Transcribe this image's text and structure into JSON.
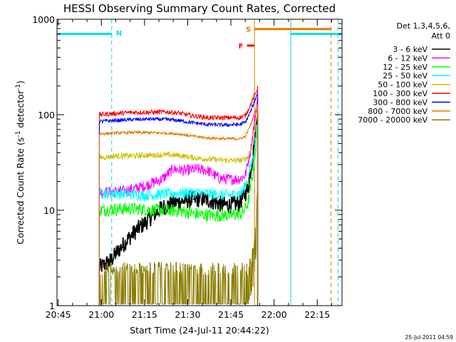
{
  "chart_data": {
    "type": "line",
    "title": "HESSI Observing Summary Count Rates, Corrected",
    "xlabel": "Start Time (24-Jul-11 20:44:22)",
    "ylabel_main": "Corrected Count Rate (s",
    "ylabel_mid": " detector",
    "ylabel_end": ")",
    "ylabel_sup": "-1",
    "yscale": "log",
    "ylim": [
      1,
      1000
    ],
    "yticks": [
      {
        "value": 1,
        "label": "1"
      },
      {
        "value": 10,
        "label": "10"
      },
      {
        "value": 100,
        "label": "100"
      },
      {
        "value": 1000,
        "label": "1000"
      }
    ],
    "xlim_minutes": [
      -0.4,
      98.6
    ],
    "xticks": [
      {
        "minute": 0,
        "label": "20:45"
      },
      {
        "minute": 15,
        "label": "21:00"
      },
      {
        "minute": 30,
        "label": "21:15"
      },
      {
        "minute": 45,
        "label": "21:30"
      },
      {
        "minute": 60,
        "label": "21:45"
      },
      {
        "minute": 75,
        "label": "22:00"
      },
      {
        "minute": 90,
        "label": "22:15"
      }
    ],
    "legend": {
      "placement": "right",
      "header_line1": "Det 1,3,4,5,6,",
      "header_line2": "Att 0"
    },
    "data_gap_minutes": [
      [
        -0.4,
        14.3
      ],
      [
        76.9,
        98.6
      ]
    ],
    "series": [
      {
        "name": "3 - 6 keV",
        "color": "#000000",
        "points": [
          [
            14.3,
            2.5
          ],
          [
            18,
            2.9
          ],
          [
            21,
            3.8
          ],
          [
            24,
            4.9
          ],
          [
            27,
            6.1
          ],
          [
            30,
            7.3
          ],
          [
            33,
            8.8
          ],
          [
            36,
            10.6
          ],
          [
            39,
            11.6
          ],
          [
            42,
            12.2
          ],
          [
            45,
            12.7
          ],
          [
            48,
            13.0
          ],
          [
            51,
            13.1
          ],
          [
            54,
            12.2
          ],
          [
            57,
            11.4
          ],
          [
            60,
            11.3
          ],
          [
            63,
            11.8
          ],
          [
            66,
            17
          ],
          [
            68,
            45
          ],
          [
            69.3,
            120
          ]
        ]
      },
      {
        "name": "6 - 12 keV",
        "color": "#ff00ff",
        "points": [
          [
            14.3,
            15.5
          ],
          [
            18,
            15.5
          ],
          [
            24,
            16
          ],
          [
            30,
            18
          ],
          [
            36,
            21
          ],
          [
            40,
            27
          ],
          [
            44,
            26
          ],
          [
            48,
            27
          ],
          [
            52,
            26
          ],
          [
            56,
            21.5
          ],
          [
            60,
            21
          ],
          [
            63,
            21.3
          ],
          [
            65,
            23
          ],
          [
            67,
            45
          ],
          [
            69.3,
            150
          ]
        ]
      },
      {
        "name": "12 - 25 keV",
        "color": "#00ff00",
        "points": [
          [
            14.3,
            10
          ],
          [
            20,
            10.3
          ],
          [
            26,
            10.3
          ],
          [
            30,
            10.2
          ],
          [
            36,
            9.9
          ],
          [
            42,
            9.9
          ],
          [
            48,
            9.1
          ],
          [
            54,
            8.8
          ],
          [
            60,
            8.9
          ],
          [
            64,
            9.2
          ],
          [
            66,
            12
          ],
          [
            68,
            28
          ],
          [
            69.3,
            80
          ]
        ]
      },
      {
        "name": "25 - 50 keV",
        "color": "#00ffff",
        "points": [
          [
            14.3,
            15
          ],
          [
            20,
            15
          ],
          [
            26,
            14.6
          ],
          [
            30,
            14.3
          ],
          [
            36,
            14.7
          ],
          [
            42,
            15
          ],
          [
            48,
            15.2
          ],
          [
            54,
            14.7
          ],
          [
            60,
            14.3
          ],
          [
            64,
            15.5
          ],
          [
            66,
            22
          ],
          [
            68,
            40
          ],
          [
            69.3,
            90
          ]
        ]
      },
      {
        "name": "50 - 100 keV",
        "color": "#ccc000",
        "points": [
          [
            14.3,
            35.5
          ],
          [
            20,
            37
          ],
          [
            26,
            37
          ],
          [
            30,
            37.5
          ],
          [
            36,
            38
          ],
          [
            42,
            37.5
          ],
          [
            48,
            35
          ],
          [
            54,
            34
          ],
          [
            60,
            33
          ],
          [
            64,
            33.5
          ],
          [
            66,
            36
          ],
          [
            68,
            55
          ],
          [
            69.3,
            120
          ]
        ]
      },
      {
        "name": "100 - 300 keV",
        "color": "#ff0000",
        "points": [
          [
            14.3,
            100
          ],
          [
            20,
            103
          ],
          [
            26,
            106
          ],
          [
            32,
            106
          ],
          [
            38,
            107
          ],
          [
            42,
            104
          ],
          [
            46,
            98
          ],
          [
            52,
            93
          ],
          [
            58,
            93
          ],
          [
            63,
            93
          ],
          [
            65,
            98
          ],
          [
            67,
            130
          ],
          [
            69.3,
            190
          ]
        ]
      },
      {
        "name": "300 - 800 keV",
        "color": "#0000ff",
        "points": [
          [
            14.3,
            85
          ],
          [
            20,
            87
          ],
          [
            26,
            89
          ],
          [
            32,
            90
          ],
          [
            38,
            89
          ],
          [
            42,
            87
          ],
          [
            46,
            83
          ],
          [
            52,
            79
          ],
          [
            58,
            78
          ],
          [
            63,
            79
          ],
          [
            65,
            83
          ],
          [
            67,
            110
          ],
          [
            69.3,
            170
          ]
        ]
      },
      {
        "name": "800 - 7000 keV",
        "color": "#e07b00",
        "points": [
          [
            14.3,
            63
          ],
          [
            20,
            64.5
          ],
          [
            26,
            65
          ],
          [
            32,
            65
          ],
          [
            38,
            64
          ],
          [
            42,
            63
          ],
          [
            46,
            60
          ],
          [
            52,
            57
          ],
          [
            58,
            56
          ],
          [
            63,
            56
          ],
          [
            65,
            59
          ],
          [
            67,
            80
          ],
          [
            69.3,
            130
          ]
        ]
      },
      {
        "name": "7000 - 20000 keV",
        "color": "#8b7d00",
        "points": [
          [
            14.3,
            1.6
          ],
          [
            20,
            1.6
          ],
          [
            26,
            1.6
          ],
          [
            32,
            1.6
          ],
          [
            38,
            1.6
          ],
          [
            44,
            1.6
          ],
          [
            50,
            1.6
          ],
          [
            56,
            1.6
          ],
          [
            62,
            1.6
          ],
          [
            66,
            1.6
          ],
          [
            68,
            2.6
          ],
          [
            69.3,
            10
          ]
        ]
      }
    ],
    "flags": [
      {
        "label": "N",
        "color": "#00e0e0",
        "y_value": 700,
        "segments": [
          [
            -0.4,
            18.6
          ],
          [
            80.8,
            98.6
          ]
        ],
        "dashed_verticals": [
          18.6,
          97.2
        ],
        "solid_verticals": [
          -0.4,
          80.8
        ]
      },
      {
        "label": "S",
        "color": "#e07b00",
        "y_value": 790,
        "segments": [
          [
            68.2,
            94.8
          ]
        ],
        "dashed_verticals": [
          94.8
        ],
        "solid_verticals": [
          68.2
        ]
      },
      {
        "label": "F",
        "color": "#ff0000",
        "y_value": 530,
        "segments": [
          [
            65.6,
            68.2
          ]
        ],
        "dashed_verticals": [],
        "solid_verticals": []
      }
    ],
    "footer_timestamp": "25-Jul-2011 04:59"
  }
}
